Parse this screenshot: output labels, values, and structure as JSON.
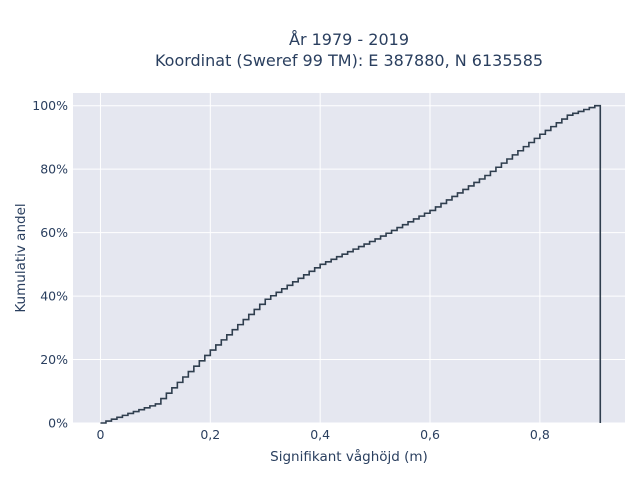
{
  "chart_data": {
    "type": "line",
    "style": "step-cumulative",
    "title_lines": [
      "År 1979 - 2019",
      "Koordinat (Sweref 99 TM): E 387880, N 6135585"
    ],
    "xlabel": "Signifikant våghöjd (m)",
    "ylabel": "Kumulativ andel",
    "xlim": [
      -0.05,
      0.955
    ],
    "ylim": [
      0,
      1.04
    ],
    "x_ticks": [
      0,
      0.2,
      0.4,
      0.6,
      0.8
    ],
    "x_tick_labels": [
      "0",
      "0,2",
      "0,4",
      "0,6",
      "0,8"
    ],
    "y_ticks": [
      0,
      0.2,
      0.4,
      0.6,
      0.8,
      1.0
    ],
    "y_tick_labels": [
      "0%",
      "20%",
      "40%",
      "60%",
      "80%",
      "100%"
    ],
    "grid": true,
    "legend": "none",
    "colors": {
      "line": "#2f3e4e",
      "plot_bg": "#e5e7f0",
      "grid": "#ffffff",
      "text": "#2a3f5f"
    },
    "series": [
      {
        "x": [
          0,
          0.1,
          0.2,
          0.3,
          0.4,
          0.5,
          0.6,
          0.7,
          0.8,
          0.85,
          0.9,
          0.91,
          0.91
        ],
        "y": [
          0,
          0.06,
          0.23,
          0.39,
          0.5,
          0.58,
          0.67,
          0.78,
          0.91,
          0.97,
          1.0,
          1.0,
          0.0
        ]
      }
    ]
  }
}
